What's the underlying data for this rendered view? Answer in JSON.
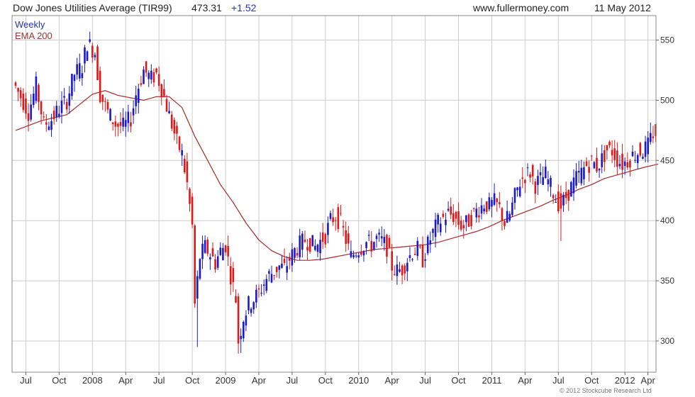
{
  "header": {
    "title": "Dow Jones Utilities Average (TIR99)",
    "last": "473.31",
    "change": "+1.52",
    "site": "www.fullermoney.com",
    "date": "11 May 2012"
  },
  "copyright": "© 2012 Stockcube Research Ltd",
  "chart_data": {
    "type": "candlestick",
    "title": "Dow Jones Utilities Average (TIR99)",
    "legend": [
      {
        "name": "Weekly",
        "color": "#2233aa"
      },
      {
        "name": "EMA 200",
        "color": "#a03030"
      }
    ],
    "legend_placement": "top-left",
    "colors": {
      "up": "#1a1acc",
      "down": "#e01818",
      "ema": "#a52a2a",
      "grid": "#cccccc"
    },
    "y_axis": {
      "ticks": [
        300,
        350,
        400,
        450,
        500,
        550
      ],
      "ylim": [
        275,
        560
      ],
      "side": "right"
    },
    "x_axis": {
      "xlim": [
        0,
        251
      ],
      "ticks": [
        {
          "label": "Jul",
          "x": 4
        },
        {
          "label": "Oct",
          "x": 17
        },
        {
          "label": "2008",
          "x": 30
        },
        {
          "label": "Apr",
          "x": 43
        },
        {
          "label": "Jul",
          "x": 56
        },
        {
          "label": "Oct",
          "x": 69
        },
        {
          "label": "2009",
          "x": 82
        },
        {
          "label": "Apr",
          "x": 95
        },
        {
          "label": "Jul",
          "x": 108
        },
        {
          "label": "Oct",
          "x": 121
        },
        {
          "label": "2010",
          "x": 134
        },
        {
          "label": "Apr",
          "x": 147
        },
        {
          "label": "Jul",
          "x": 160
        },
        {
          "label": "Oct",
          "x": 173
        },
        {
          "label": "2011",
          "x": 186
        },
        {
          "label": "Apr",
          "x": 199
        },
        {
          "label": "Jul",
          "x": 212
        },
        {
          "label": "Oct",
          "x": 225
        },
        {
          "label": "2012",
          "x": 238
        },
        {
          "label": "Apr",
          "x": 247
        }
      ]
    },
    "grid": true,
    "price_path": [
      [
        0,
        515
      ],
      [
        3,
        503
      ],
      [
        6,
        490
      ],
      [
        9,
        512
      ],
      [
        12,
        480
      ],
      [
        15,
        484
      ],
      [
        18,
        493
      ],
      [
        21,
        500
      ],
      [
        24,
        522
      ],
      [
        27,
        528
      ],
      [
        29,
        548
      ],
      [
        32,
        540
      ],
      [
        34,
        505
      ],
      [
        37,
        490
      ],
      [
        40,
        480
      ],
      [
        43,
        478
      ],
      [
        46,
        485
      ],
      [
        48,
        505
      ],
      [
        51,
        525
      ],
      [
        54,
        518
      ],
      [
        56,
        522
      ],
      [
        58,
        510
      ],
      [
        60,
        495
      ],
      [
        62,
        480
      ],
      [
        64,
        465
      ],
      [
        66,
        455
      ],
      [
        68,
        430
      ],
      [
        70,
        395
      ],
      [
        71,
        330
      ],
      [
        73,
        370
      ],
      [
        75,
        378
      ],
      [
        77,
        372
      ],
      [
        79,
        365
      ],
      [
        81,
        375
      ],
      [
        83,
        380
      ],
      [
        85,
        355
      ],
      [
        87,
        335
      ],
      [
        88,
        300
      ],
      [
        90,
        320
      ],
      [
        92,
        330
      ],
      [
        94,
        335
      ],
      [
        96,
        340
      ],
      [
        98,
        348
      ],
      [
        100,
        355
      ],
      [
        102,
        358
      ],
      [
        104,
        362
      ],
      [
        106,
        360
      ],
      [
        108,
        368
      ],
      [
        110,
        375
      ],
      [
        112,
        380
      ],
      [
        114,
        384
      ],
      [
        116,
        382
      ],
      [
        118,
        378
      ],
      [
        120,
        383
      ],
      [
        122,
        388
      ],
      [
        124,
        400
      ],
      [
        126,
        404
      ],
      [
        128,
        398
      ],
      [
        130,
        384
      ],
      [
        132,
        370
      ],
      [
        134,
        375
      ],
      [
        136,
        378
      ],
      [
        138,
        382
      ],
      [
        140,
        380
      ],
      [
        142,
        385
      ],
      [
        144,
        383
      ],
      [
        146,
        378
      ],
      [
        148,
        362
      ],
      [
        150,
        358
      ],
      [
        152,
        360
      ],
      [
        154,
        368
      ],
      [
        156,
        374
      ],
      [
        158,
        376
      ],
      [
        160,
        368
      ],
      [
        162,
        380
      ],
      [
        164,
        390
      ],
      [
        166,
        398
      ],
      [
        168,
        402
      ],
      [
        170,
        406
      ],
      [
        172,
        404
      ],
      [
        174,
        398
      ],
      [
        176,
        395
      ],
      [
        178,
        400
      ],
      [
        180,
        406
      ],
      [
        182,
        410
      ],
      [
        184,
        414
      ],
      [
        186,
        412
      ],
      [
        188,
        415
      ],
      [
        190,
        410
      ],
      [
        192,
        398
      ],
      [
        194,
        405
      ],
      [
        196,
        420
      ],
      [
        198,
        432
      ],
      [
        200,
        438
      ],
      [
        202,
        440
      ],
      [
        204,
        430
      ],
      [
        206,
        434
      ],
      [
        208,
        438
      ],
      [
        210,
        428
      ],
      [
        212,
        418
      ],
      [
        214,
        412
      ],
      [
        216,
        420
      ],
      [
        218,
        428
      ],
      [
        220,
        435
      ],
      [
        222,
        440
      ],
      [
        224,
        446
      ],
      [
        226,
        449
      ],
      [
        228,
        445
      ],
      [
        230,
        451
      ],
      [
        232,
        459
      ],
      [
        234,
        458
      ],
      [
        236,
        451
      ],
      [
        238,
        447
      ],
      [
        240,
        450
      ],
      [
        242,
        454
      ],
      [
        244,
        457
      ],
      [
        246,
        458
      ],
      [
        248,
        462
      ],
      [
        250,
        473
      ]
    ],
    "ema_path": [
      [
        0,
        475
      ],
      [
        10,
        483
      ],
      [
        20,
        488
      ],
      [
        30,
        505
      ],
      [
        35,
        508
      ],
      [
        40,
        504
      ],
      [
        50,
        500
      ],
      [
        55,
        503
      ],
      [
        60,
        503
      ],
      [
        65,
        494
      ],
      [
        70,
        470
      ],
      [
        75,
        450
      ],
      [
        80,
        430
      ],
      [
        85,
        415
      ],
      [
        90,
        398
      ],
      [
        95,
        384
      ],
      [
        100,
        375
      ],
      [
        105,
        370
      ],
      [
        110,
        367
      ],
      [
        115,
        367
      ],
      [
        120,
        368
      ],
      [
        125,
        370
      ],
      [
        130,
        372
      ],
      [
        135,
        374
      ],
      [
        140,
        376
      ],
      [
        145,
        377
      ],
      [
        150,
        378
      ],
      [
        155,
        379
      ],
      [
        160,
        380
      ],
      [
        165,
        382
      ],
      [
        170,
        385
      ],
      [
        175,
        388
      ],
      [
        180,
        391
      ],
      [
        185,
        395
      ],
      [
        190,
        400
      ],
      [
        195,
        404
      ],
      [
        200,
        408
      ],
      [
        205,
        412
      ],
      [
        210,
        417
      ],
      [
        215,
        421
      ],
      [
        220,
        426
      ],
      [
        225,
        430
      ],
      [
        230,
        435
      ],
      [
        235,
        438
      ],
      [
        240,
        441
      ],
      [
        245,
        444
      ],
      [
        251,
        447
      ]
    ],
    "notable_lows": [
      [
        71,
        295
      ],
      [
        88,
        290
      ],
      [
        213,
        383
      ]
    ],
    "notable_highs": [
      [
        29,
        557
      ],
      [
        56,
        528
      ],
      [
        250,
        474
      ]
    ]
  }
}
